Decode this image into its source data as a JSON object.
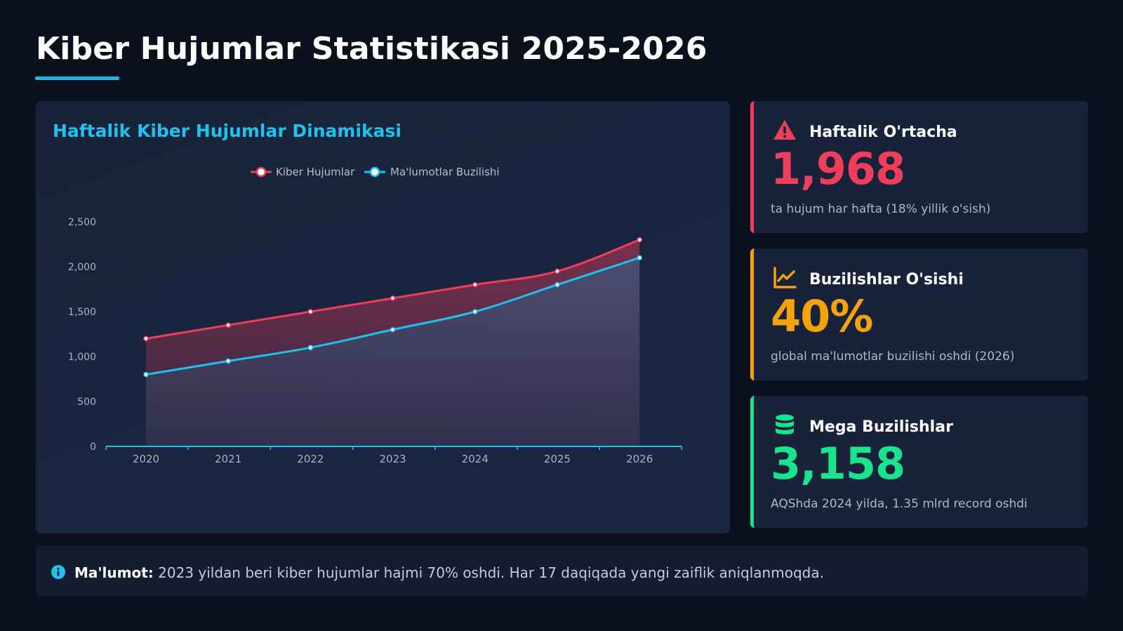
{
  "page": {
    "title": "Kiber Hujumlar Statistikasi 2025-2026"
  },
  "chart_panel": {
    "title": "Haftalik Kiber Hujumlar Dinamikasi"
  },
  "chart_data": {
    "type": "line",
    "x": [
      "2020",
      "2021",
      "2022",
      "2023",
      "2024",
      "2025",
      "2026"
    ],
    "series": [
      {
        "name": "Kiber Hujumlar",
        "values": [
          1200,
          1350,
          1500,
          1650,
          1800,
          1950,
          2300
        ],
        "color": "#ef3e5c",
        "fill": "area"
      },
      {
        "name": "Ma'lumotlar Buzilishi",
        "values": [
          800,
          950,
          1100,
          1300,
          1500,
          1800,
          2100
        ],
        "color": "#1fc1ee",
        "fill": "area"
      }
    ],
    "yticks": [
      "0",
      "500",
      "1,000",
      "1,500",
      "2,000",
      "2,500"
    ],
    "ylim": [
      0,
      2500
    ],
    "legend_position": "top-center",
    "grid": false
  },
  "cards": [
    {
      "label": "Haftalik O'rtacha",
      "value": "1,968",
      "desc": "ta hujum har hafta (18% yillik o'sish)",
      "color": "#ef3e5c",
      "icon": "warning-icon"
    },
    {
      "label": "Buzilishlar O'sishi",
      "value": "40%",
      "desc": "global ma'lumotlar buzilishi oshdi (2026)",
      "color": "#f5a30a",
      "icon": "chart-line-icon"
    },
    {
      "label": "Mega Buzilishlar",
      "value": "3,158",
      "desc": "AQShda 2024 yilda, 1.35 mlrd record oshdi",
      "color": "#19e48e",
      "icon": "database-icon"
    }
  ],
  "info": {
    "icon": "info-icon",
    "label": "Ma'lumot:",
    "text": " 2023 yildan beri kiber hujumlar hajmi 70% oshdi. Har 17 daqiqada yangi zaiflik aniqlanmoqda."
  }
}
